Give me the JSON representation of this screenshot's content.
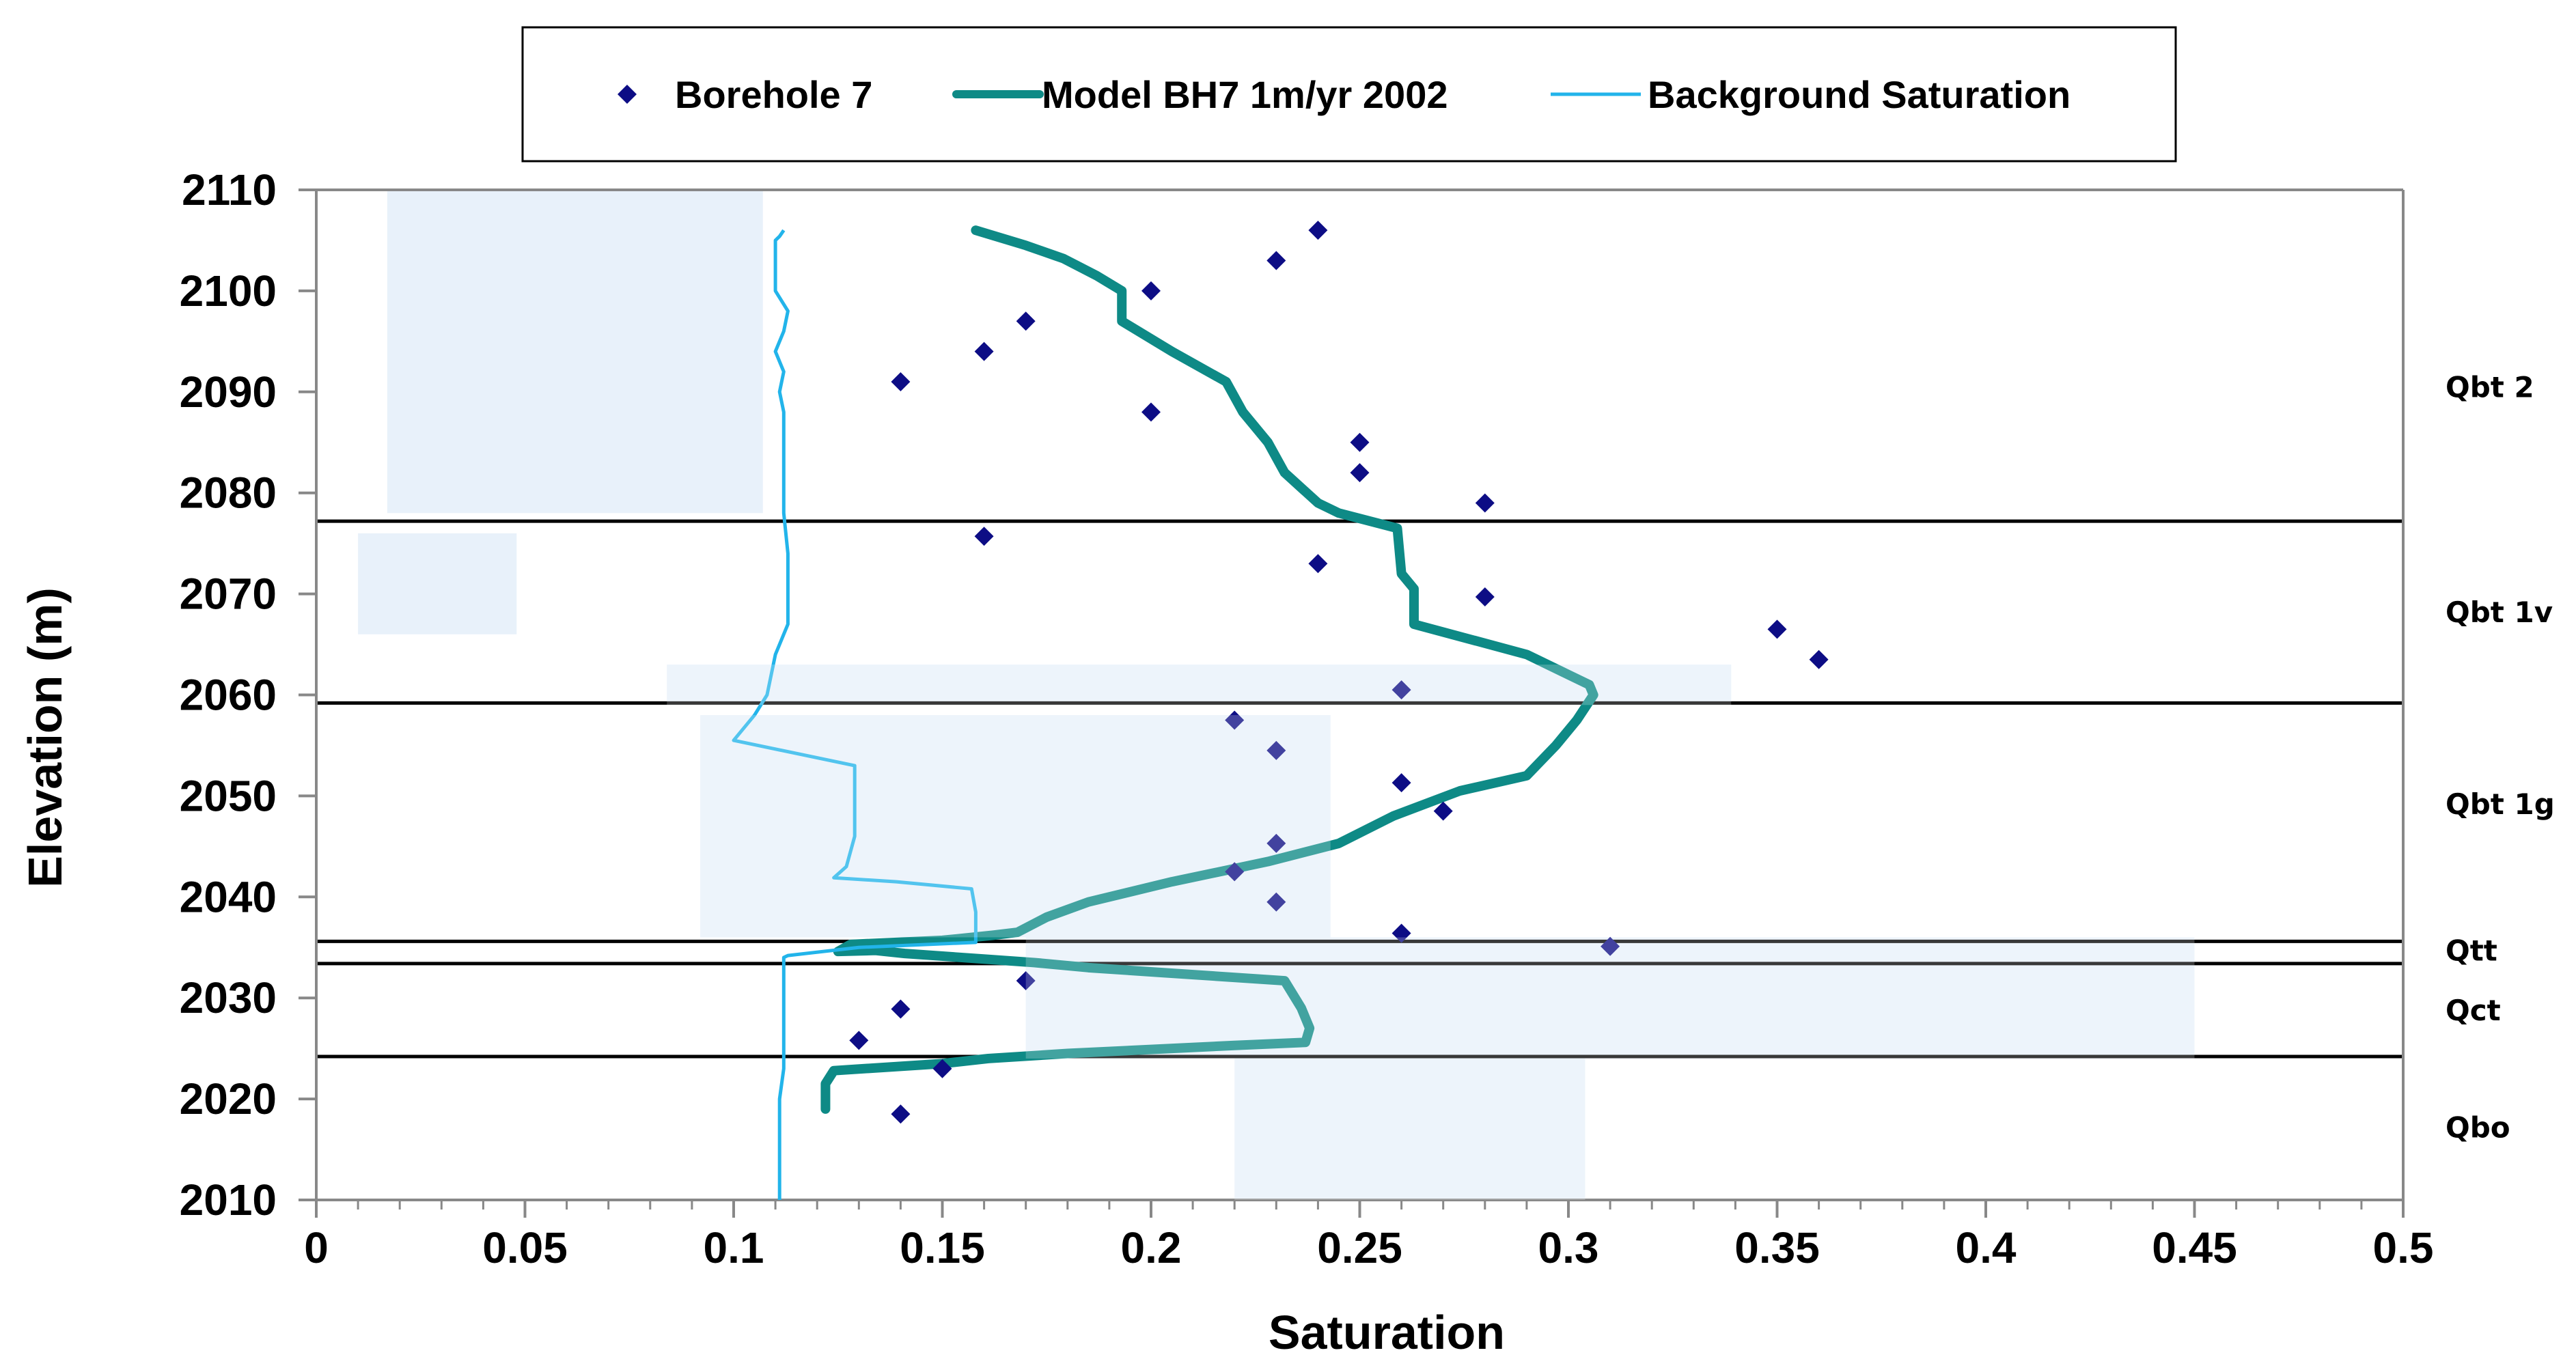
{
  "chart_data": {
    "type": "scatter",
    "title": "",
    "xlabel": "Saturation",
    "ylabel": "Elevation (m)",
    "xlim": [
      0,
      0.5
    ],
    "ylim": [
      2010,
      2110
    ],
    "x_ticks": [
      0,
      0.05,
      0.1,
      0.15,
      0.2,
      0.25,
      0.3,
      0.35,
      0.4,
      0.45,
      0.5
    ],
    "x_tick_labels": [
      "0",
      "0.05",
      "0.1",
      "0.15",
      "0.2",
      "0.25",
      "0.3",
      "0.35",
      "0.4",
      "0.45",
      "0.5"
    ],
    "y_ticks": [
      2010,
      2020,
      2030,
      2040,
      2050,
      2060,
      2070,
      2080,
      2090,
      2100,
      2110
    ],
    "y_tick_labels": [
      "2010",
      "2020",
      "2030",
      "2040",
      "2050",
      "2060",
      "2070",
      "2080",
      "2090",
      "2100",
      "2110"
    ],
    "legend": [
      "Borehole 7",
      "Model BH7 1m/yr 2002",
      "Background Saturation"
    ],
    "legend_position": "top",
    "colors": {
      "borehole": "#0d0d85",
      "model": "#0e8a86",
      "background": "#22b4ea",
      "range_fill": "#deebf8",
      "contact": "#000000",
      "axis": "#888888"
    },
    "series": [
      {
        "name": "Borehole 7",
        "kind": "scatter",
        "points": [
          [
            0.24,
            2106
          ],
          [
            0.23,
            2103
          ],
          [
            0.2,
            2100
          ],
          [
            0.17,
            2097
          ],
          [
            0.16,
            2094
          ],
          [
            0.14,
            2091
          ],
          [
            0.2,
            2088
          ],
          [
            0.25,
            2085
          ],
          [
            0.25,
            2082
          ],
          [
            0.28,
            2079
          ],
          [
            0.16,
            2075.7
          ],
          [
            0.24,
            2073
          ],
          [
            0.28,
            2069.7
          ],
          [
            0.35,
            2066.5
          ],
          [
            0.36,
            2063.5
          ],
          [
            0.26,
            2060.5
          ],
          [
            0.22,
            2057.5
          ],
          [
            0.23,
            2054.5
          ],
          [
            0.26,
            2051.3
          ],
          [
            0.27,
            2048.5
          ],
          [
            0.23,
            2045.3
          ],
          [
            0.22,
            2042.5
          ],
          [
            0.23,
            2039.5
          ],
          [
            0.26,
            2036.4
          ],
          [
            0.31,
            2035.1
          ],
          [
            0.17,
            2031.7
          ],
          [
            0.14,
            2028.9
          ],
          [
            0.13,
            2025.8
          ],
          [
            0.15,
            2023
          ],
          [
            0.14,
            2018.5
          ]
        ]
      },
      {
        "name": "Model BH7 1m/yr 2002",
        "kind": "line",
        "points": [
          [
            0.158,
            2106
          ],
          [
            0.17,
            2104.5
          ],
          [
            0.179,
            2103.2
          ],
          [
            0.187,
            2101.5
          ],
          [
            0.193,
            2100
          ],
          [
            0.193,
            2097
          ],
          [
            0.205,
            2094
          ],
          [
            0.218,
            2091
          ],
          [
            0.222,
            2088
          ],
          [
            0.228,
            2085
          ],
          [
            0.232,
            2082
          ],
          [
            0.24,
            2079
          ],
          [
            0.245,
            2078
          ],
          [
            0.259,
            2076.5
          ],
          [
            0.26,
            2072
          ],
          [
            0.263,
            2070.5
          ],
          [
            0.263,
            2067
          ],
          [
            0.29,
            2064
          ],
          [
            0.3,
            2062
          ],
          [
            0.305,
            2061
          ],
          [
            0.306,
            2060
          ],
          [
            0.302,
            2057.5
          ],
          [
            0.297,
            2055
          ],
          [
            0.29,
            2052
          ],
          [
            0.274,
            2050.5
          ],
          [
            0.258,
            2048
          ],
          [
            0.245,
            2045.3
          ],
          [
            0.228,
            2043.5
          ],
          [
            0.205,
            2041.5
          ],
          [
            0.185,
            2039.5
          ],
          [
            0.175,
            2038
          ],
          [
            0.168,
            2036.5
          ],
          [
            0.162,
            2036.2
          ],
          [
            0.15,
            2035.7
          ],
          [
            0.128,
            2035.3
          ],
          [
            0.125,
            2034.6
          ],
          [
            0.134,
            2034.7
          ],
          [
            0.141,
            2034.4
          ],
          [
            0.172,
            2033.5
          ],
          [
            0.185,
            2033
          ],
          [
            0.203,
            2032.5
          ],
          [
            0.232,
            2031.7
          ],
          [
            0.236,
            2029
          ],
          [
            0.238,
            2027
          ],
          [
            0.237,
            2025.6
          ],
          [
            0.22,
            2025.3
          ],
          [
            0.18,
            2024.5
          ],
          [
            0.161,
            2024
          ],
          [
            0.15,
            2023.5
          ],
          [
            0.124,
            2022.8
          ],
          [
            0.122,
            2021.5
          ],
          [
            0.122,
            2019
          ]
        ]
      },
      {
        "name": "Background Saturation",
        "kind": "line",
        "points": [
          [
            0.112,
            2106
          ],
          [
            0.111,
            2105.4
          ],
          [
            0.11,
            2105
          ],
          [
            0.11,
            2100
          ],
          [
            0.113,
            2098
          ],
          [
            0.112,
            2096
          ],
          [
            0.11,
            2094
          ],
          [
            0.112,
            2092
          ],
          [
            0.111,
            2090
          ],
          [
            0.112,
            2088
          ],
          [
            0.112,
            2078
          ],
          [
            0.113,
            2074
          ],
          [
            0.113,
            2067
          ],
          [
            0.11,
            2064
          ],
          [
            0.108,
            2060
          ],
          [
            0.105,
            2058
          ],
          [
            0.1,
            2055.5
          ],
          [
            0.129,
            2053
          ],
          [
            0.129,
            2046
          ],
          [
            0.127,
            2043
          ],
          [
            0.124,
            2041.9
          ],
          [
            0.139,
            2041.5
          ],
          [
            0.157,
            2040.8
          ],
          [
            0.158,
            2038.5
          ],
          [
            0.158,
            2035.5
          ],
          [
            0.13,
            2035
          ],
          [
            0.113,
            2034.2
          ],
          [
            0.112,
            2034
          ],
          [
            0.112,
            2023
          ],
          [
            0.111,
            2020
          ],
          [
            0.111,
            2010
          ]
        ]
      }
    ],
    "ranges": [
      {
        "x": [
          0.017,
          0.107
        ],
        "y": [
          2078,
          2110
        ]
      },
      {
        "x": [
          0.01,
          0.048
        ],
        "y": [
          2066,
          2076
        ]
      },
      {
        "x": [
          0.084,
          0.339
        ],
        "y": [
          2059,
          2063
        ]
      },
      {
        "x": [
          0.092,
          0.243
        ],
        "y": [
          2036,
          2058
        ]
      },
      {
        "x": [
          0.17,
          0.45
        ],
        "y": [
          2024,
          2036
        ]
      },
      {
        "x": [
          0.22,
          0.304
        ],
        "y": [
          2010,
          2024
        ]
      }
    ],
    "contacts": [
      2077.2,
      2059.2,
      2035.6,
      2033.4,
      2024.2
    ],
    "units": [
      {
        "label": "Qbt 2",
        "elev": 2090.5
      },
      {
        "label": "Qbt 1v",
        "elev": 2068.2
      },
      {
        "label": "Qbt 1g",
        "elev": 2049.2
      },
      {
        "label": "Qtt",
        "elev": 2034.7
      },
      {
        "label": "Qct",
        "elev": 2028.8
      },
      {
        "label": "Qbo",
        "elev": 2017.2
      }
    ]
  }
}
